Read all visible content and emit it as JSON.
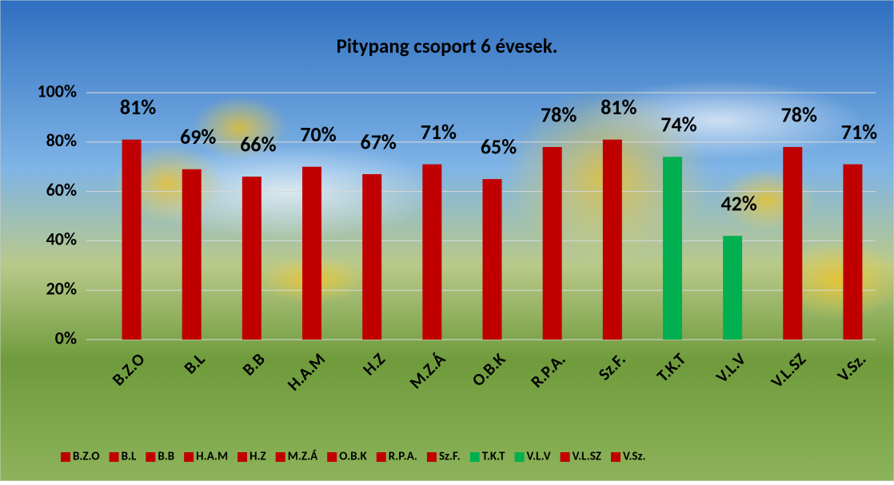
{
  "chart_data": {
    "type": "bar",
    "title": "Pitypang csoport 6 évesek.",
    "categories": [
      "B.Z.O",
      "B.L",
      "B.B",
      "H.A.M",
      "H.Z",
      "M.Z.Á",
      "O.B.K",
      "R.P.A.",
      "Sz.F.",
      "T.K.T",
      "V.L.V",
      "V.L.SZ",
      "V.Sz."
    ],
    "values": [
      81,
      69,
      66,
      70,
      67,
      71,
      65,
      78,
      81,
      74,
      42,
      78,
      71
    ],
    "value_labels": [
      "81%",
      "69%",
      "66%",
      "70%",
      "67%",
      "71%",
      "65%",
      "78%",
      "81%",
      "74%",
      "42%",
      "78%",
      "71%"
    ],
    "colors": [
      "#c00000",
      "#c00000",
      "#c00000",
      "#c00000",
      "#c00000",
      "#c00000",
      "#c00000",
      "#c00000",
      "#c00000",
      "#00b050",
      "#00b050",
      "#c00000",
      "#c00000"
    ],
    "ylim": [
      0,
      100
    ],
    "yticks": [
      {
        "value": 0,
        "label": "0%"
      },
      {
        "value": 20,
        "label": "20%"
      },
      {
        "value": 40,
        "label": "40%"
      },
      {
        "value": 60,
        "label": "60%"
      },
      {
        "value": 80,
        "label": "80%"
      },
      {
        "value": 100,
        "label": "100%"
      }
    ],
    "grid": true,
    "legend": "bottom"
  }
}
